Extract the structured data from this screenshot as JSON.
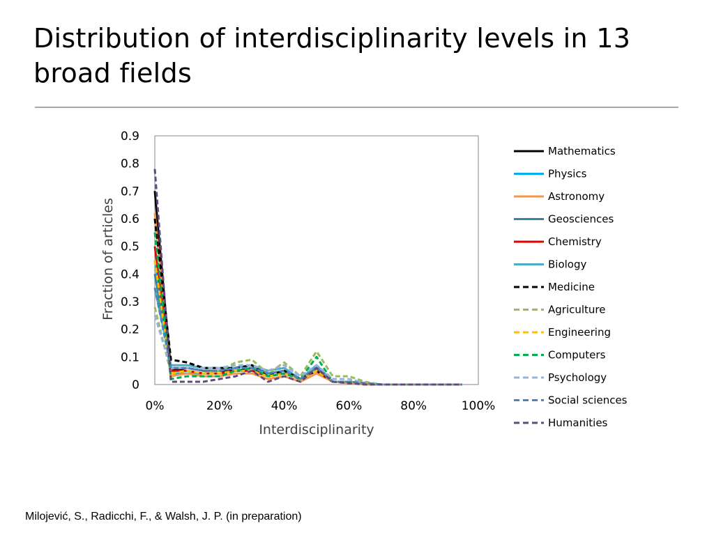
{
  "slide": {
    "title": "Distribution of interdisciplinarity levels in 13 broad fields",
    "citation": "Milojević, S., Radicchi, F., & Walsh, J. P.  (in preparation)"
  },
  "chart_data": {
    "type": "line",
    "title": "",
    "xlabel": "Interdisciplinarity",
    "ylabel": "Fraction of articles",
    "xlim": [
      0,
      1
    ],
    "ylim": [
      0,
      0.9
    ],
    "x_ticks": [
      "0%",
      "20%",
      "40%",
      "60%",
      "80%",
      "100%"
    ],
    "y_ticks": [
      "0",
      "0.1",
      "0.2",
      "0.3",
      "0.4",
      "0.5",
      "0.6",
      "0.7",
      "0.8",
      "0.9"
    ],
    "x": [
      0,
      0.05,
      0.1,
      0.15,
      0.2,
      0.25,
      0.3,
      0.35,
      0.4,
      0.45,
      0.5,
      0.55,
      0.6,
      0.65,
      0.7,
      0.75,
      0.8,
      0.85,
      0.9,
      0.95
    ],
    "legend_position": "right",
    "series": [
      {
        "name": "Mathematics",
        "color": "#000000",
        "dash": "solid",
        "values": [
          0.7,
          0.05,
          0.06,
          0.05,
          0.05,
          0.05,
          0.06,
          0.03,
          0.04,
          0.02,
          0.05,
          0.01,
          0.01,
          0.005,
          0,
          0,
          0,
          0,
          0,
          0
        ]
      },
      {
        "name": "Physics",
        "color": "#00b0f0",
        "dash": "solid",
        "values": [
          0.45,
          0.04,
          0.04,
          0.04,
          0.04,
          0.05,
          0.05,
          0.03,
          0.04,
          0.02,
          0.06,
          0.01,
          0.01,
          0.005,
          0,
          0,
          0,
          0,
          0,
          0
        ]
      },
      {
        "name": "Astronomy",
        "color": "#f79646",
        "dash": "solid",
        "values": [
          0.62,
          0.03,
          0.04,
          0.03,
          0.03,
          0.04,
          0.04,
          0.02,
          0.03,
          0.01,
          0.04,
          0.01,
          0.005,
          0,
          0,
          0,
          0,
          0,
          0,
          0
        ]
      },
      {
        "name": "Geosciences",
        "color": "#31859c",
        "dash": "solid",
        "values": [
          0.4,
          0.06,
          0.06,
          0.05,
          0.05,
          0.06,
          0.07,
          0.04,
          0.05,
          0.02,
          0.06,
          0.01,
          0.01,
          0.005,
          0,
          0,
          0,
          0,
          0,
          0
        ]
      },
      {
        "name": "Chemistry",
        "color": "#e00000",
        "dash": "solid",
        "values": [
          0.5,
          0.05,
          0.05,
          0.04,
          0.04,
          0.05,
          0.05,
          0.03,
          0.04,
          0.02,
          0.05,
          0.01,
          0.01,
          0.005,
          0,
          0,
          0,
          0,
          0,
          0
        ]
      },
      {
        "name": "Biology",
        "color": "#4bacc6",
        "dash": "solid",
        "values": [
          0.35,
          0.07,
          0.07,
          0.06,
          0.06,
          0.06,
          0.07,
          0.05,
          0.06,
          0.02,
          0.07,
          0.01,
          0.01,
          0.005,
          0,
          0,
          0,
          0,
          0,
          0
        ]
      },
      {
        "name": "Medicine",
        "color": "#000000",
        "dash": "dashed",
        "values": [
          0.6,
          0.09,
          0.08,
          0.06,
          0.06,
          0.06,
          0.07,
          0.03,
          0.05,
          0.02,
          0.05,
          0.01,
          0.01,
          0.005,
          0,
          0,
          0,
          0,
          0,
          0
        ]
      },
      {
        "name": "Agriculture",
        "color": "#9bbb59",
        "dash": "dashed",
        "values": [
          0.28,
          0.04,
          0.05,
          0.04,
          0.05,
          0.08,
          0.09,
          0.04,
          0.08,
          0.03,
          0.12,
          0.03,
          0.03,
          0.01,
          0,
          0,
          0,
          0,
          0,
          0
        ]
      },
      {
        "name": "Engineering",
        "color": "#ffc000",
        "dash": "dashed",
        "values": [
          0.45,
          0.04,
          0.05,
          0.04,
          0.04,
          0.05,
          0.05,
          0.03,
          0.04,
          0.02,
          0.05,
          0.01,
          0.01,
          0.005,
          0,
          0,
          0,
          0,
          0,
          0
        ]
      },
      {
        "name": "Computers",
        "color": "#00b050",
        "dash": "dashed",
        "values": [
          0.55,
          0.02,
          0.03,
          0.03,
          0.03,
          0.05,
          0.06,
          0.03,
          0.04,
          0.02,
          0.1,
          0.01,
          0.01,
          0.005,
          0,
          0,
          0,
          0,
          0,
          0
        ]
      },
      {
        "name": "Psychology",
        "color": "#95b3d7",
        "dash": "dashed",
        "values": [
          0.25,
          0.06,
          0.06,
          0.06,
          0.06,
          0.07,
          0.07,
          0.05,
          0.07,
          0.03,
          0.07,
          0.02,
          0.02,
          0.005,
          0,
          0,
          0,
          0,
          0,
          0
        ]
      },
      {
        "name": "Social sciences",
        "color": "#4f81bd",
        "dash": "dashed",
        "values": [
          0.35,
          0.06,
          0.06,
          0.05,
          0.05,
          0.06,
          0.06,
          0.04,
          0.05,
          0.02,
          0.06,
          0.01,
          0.01,
          0.005,
          0,
          0,
          0,
          0,
          0,
          0
        ]
      },
      {
        "name": "Humanities",
        "color": "#604a7b",
        "dash": "dashed",
        "values": [
          0.78,
          0.01,
          0.01,
          0.01,
          0.02,
          0.03,
          0.05,
          0.01,
          0.03,
          0.01,
          0.06,
          0.01,
          0.005,
          0,
          0,
          0,
          0,
          0,
          0,
          0
        ]
      }
    ]
  }
}
